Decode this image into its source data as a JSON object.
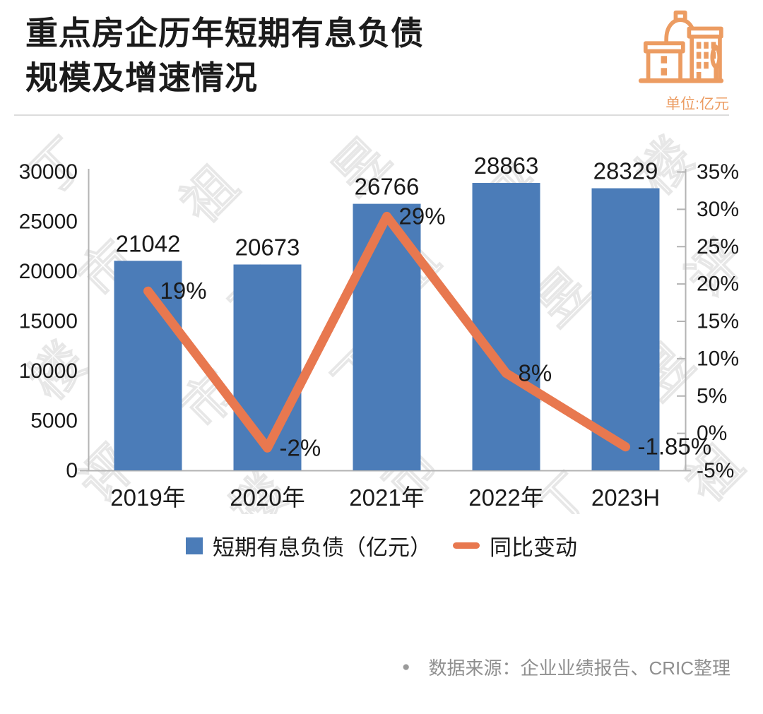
{
  "header": {
    "title_line1": "重点房企历年短期有息负债",
    "title_line2": "规模及增速情况",
    "unit_label": "单位:亿元"
  },
  "chart_data": {
    "type": "bar+line combo",
    "title": "重点房企历年短期有息负债规模及增速情况",
    "categories": [
      "2019年",
      "2020年",
      "2021年",
      "2022年",
      "2023H"
    ],
    "series": [
      {
        "name": "短期有息负债（亿元）",
        "type": "bar",
        "axis": "left",
        "values": [
          21042,
          20673,
          26766,
          28863,
          28329
        ],
        "data_labels": [
          "21042",
          "20673",
          "26766",
          "28863",
          "28329"
        ]
      },
      {
        "name": "同比变动",
        "type": "line",
        "axis": "right",
        "values": [
          19,
          -2,
          29,
          8,
          -1.85
        ],
        "data_labels": [
          "19%",
          "-2%",
          "29%",
          "8%",
          "-1.85%"
        ]
      }
    ],
    "left_axis": {
      "min": 0,
      "max": 30000,
      "step": 5000,
      "tick_labels": [
        "0",
        "5000",
        "10000",
        "15000",
        "20000",
        "25000",
        "30000"
      ]
    },
    "right_axis": {
      "min": -5,
      "max": 35,
      "step": 5,
      "tick_labels": [
        "-5%",
        "0%",
        "5%",
        "10%",
        "15%",
        "20%",
        "25%",
        "30%",
        "35%"
      ]
    },
    "grid": false,
    "legend_position": "bottom"
  },
  "legend": {
    "bar_label": "短期有息负债（亿元）",
    "line_label": "同比变动"
  },
  "watermark": {
    "text": "丁祖昱评楼市"
  },
  "footer": {
    "bullet": "●",
    "source_text": "数据来源：企业业绩报告、CRIC整理"
  },
  "colors": {
    "bar": "#4B7CB8",
    "line": "#E8784F",
    "accent_orange": "#EC9C62",
    "axis": "#b3b3b3",
    "text": "#1a1a1a",
    "muted": "#8f8f8f"
  }
}
